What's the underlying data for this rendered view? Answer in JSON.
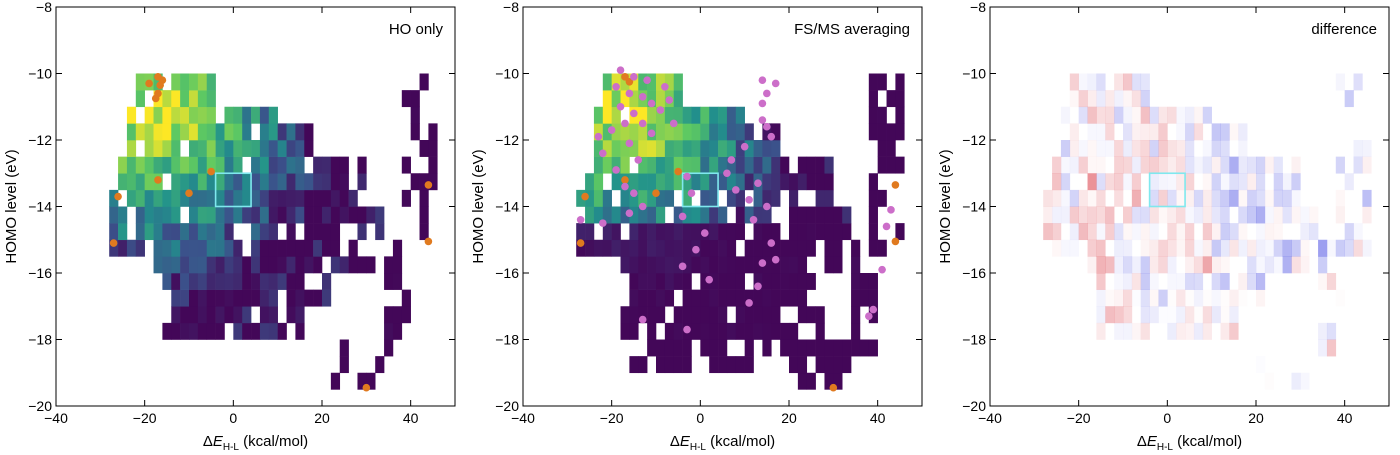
{
  "chart_data": [
    {
      "type": "heatmap",
      "title": "HO only",
      "xlabel": "ΔE",
      "xlabel_subscript": "H-L",
      "xlabel_unit": " (kcal/mol)",
      "ylabel": "HOMO level (eV)",
      "xlim": [
        -40,
        50
      ],
      "ylim": [
        -20,
        -8
      ],
      "xticks": [
        -40,
        -20,
        0,
        20,
        40
      ],
      "yticks": [
        -8,
        -10,
        -12,
        -14,
        -16,
        -18,
        -20
      ],
      "grid": false,
      "colormap": "viridis",
      "highlight_box": {
        "x": [
          -4,
          4
        ],
        "y": [
          -14,
          -13
        ],
        "color": "#7fe8ee"
      },
      "points": [
        {
          "x": -17,
          "y": -10.1,
          "color": "#e07a1f"
        },
        {
          "x": -16,
          "y": -10.2,
          "color": "#e07a1f"
        },
        {
          "x": -16.5,
          "y": -10.35,
          "color": "#e07a1f"
        },
        {
          "x": -19,
          "y": -10.3,
          "color": "#e07a1f"
        },
        {
          "x": -17,
          "y": -10.6,
          "color": "#e07a1f"
        },
        {
          "x": -17.5,
          "y": -10.75,
          "color": "#e07a1f"
        },
        {
          "x": -10,
          "y": -13.6,
          "color": "#e07a1f"
        },
        {
          "x": -17,
          "y": -13.2,
          "color": "#e07a1f"
        },
        {
          "x": -5,
          "y": -12.95,
          "color": "#e07a1f"
        },
        {
          "x": -26,
          "y": -13.7,
          "color": "#e07a1f"
        },
        {
          "x": -27,
          "y": -15.1,
          "color": "#e07a1f"
        },
        {
          "x": 44,
          "y": -13.35,
          "color": "#e07a1f"
        },
        {
          "x": 44,
          "y": -15.05,
          "color": "#e07a1f"
        },
        {
          "x": 30,
          "y": -19.45,
          "color": "#e07a1f"
        }
      ]
    },
    {
      "type": "heatmap",
      "title": "FS/MS averaging",
      "xlabel": "ΔE",
      "xlabel_subscript": "H-L",
      "xlabel_unit": " (kcal/mol)",
      "ylabel": "HOMO level (eV)",
      "xlim": [
        -40,
        50
      ],
      "ylim": [
        -20,
        -8
      ],
      "xticks": [
        -40,
        -20,
        0,
        20,
        40
      ],
      "yticks": [
        -8,
        -10,
        -12,
        -14,
        -16,
        -18,
        -20
      ],
      "grid": false,
      "colormap": "viridis",
      "highlight_box": {
        "x": [
          -4,
          4
        ],
        "y": [
          -14,
          -13
        ],
        "color": "#7fe8ee"
      },
      "points": [
        {
          "x": -17,
          "y": -10.1,
          "color": "#e07a1f"
        },
        {
          "x": -16,
          "y": -10.25,
          "color": "#e07a1f"
        },
        {
          "x": -10,
          "y": -13.6,
          "color": "#e07a1f"
        },
        {
          "x": -17,
          "y": -13.2,
          "color": "#e07a1f"
        },
        {
          "x": -5,
          "y": -12.95,
          "color": "#e07a1f"
        },
        {
          "x": -26,
          "y": -13.7,
          "color": "#e07a1f"
        },
        {
          "x": -27,
          "y": -15.1,
          "color": "#e07a1f"
        },
        {
          "x": 44,
          "y": -13.35,
          "color": "#e07a1f"
        },
        {
          "x": 44,
          "y": -15.05,
          "color": "#e07a1f"
        },
        {
          "x": 30,
          "y": -19.45,
          "color": "#e07a1f"
        },
        {
          "x": -18,
          "y": -9.9,
          "color": "#cc6ec9"
        },
        {
          "x": -15,
          "y": -10.1,
          "color": "#cc6ec9"
        },
        {
          "x": -12,
          "y": -10.2,
          "color": "#cc6ec9"
        },
        {
          "x": -19,
          "y": -10.4,
          "color": "#cc6ec9"
        },
        {
          "x": -16,
          "y": -10.6,
          "color": "#cc6ec9"
        },
        {
          "x": -13,
          "y": -10.7,
          "color": "#cc6ec9"
        },
        {
          "x": -11,
          "y": -10.9,
          "color": "#cc6ec9"
        },
        {
          "x": -18,
          "y": -11.0,
          "color": "#cc6ec9"
        },
        {
          "x": -15,
          "y": -11.2,
          "color": "#cc6ec9"
        },
        {
          "x": -9,
          "y": -11.1,
          "color": "#cc6ec9"
        },
        {
          "x": -17,
          "y": -11.5,
          "color": "#cc6ec9"
        },
        {
          "x": -13,
          "y": -11.5,
          "color": "#cc6ec9"
        },
        {
          "x": -20,
          "y": -11.7,
          "color": "#cc6ec9"
        },
        {
          "x": -11,
          "y": -11.8,
          "color": "#cc6ec9"
        },
        {
          "x": -23,
          "y": -11.9,
          "color": "#cc6ec9"
        },
        {
          "x": -16,
          "y": -12.1,
          "color": "#cc6ec9"
        },
        {
          "x": -22,
          "y": -12.4,
          "color": "#cc6ec9"
        },
        {
          "x": -14,
          "y": -12.6,
          "color": "#cc6ec9"
        },
        {
          "x": -19,
          "y": -12.9,
          "color": "#cc6ec9"
        },
        {
          "x": -17,
          "y": -13.4,
          "color": "#cc6ec9"
        },
        {
          "x": -15,
          "y": -13.6,
          "color": "#cc6ec9"
        },
        {
          "x": -13,
          "y": -14.0,
          "color": "#cc6ec9"
        },
        {
          "x": -16,
          "y": -14.2,
          "color": "#cc6ec9"
        },
        {
          "x": -22,
          "y": -14.5,
          "color": "#cc6ec9"
        },
        {
          "x": -27,
          "y": -14.4,
          "color": "#cc6ec9"
        },
        {
          "x": -8,
          "y": -10.4,
          "color": "#cc6ec9"
        },
        {
          "x": -7,
          "y": -10.8,
          "color": "#cc6ec9"
        },
        {
          "x": -6,
          "y": -11.5,
          "color": "#cc6ec9"
        },
        {
          "x": -3,
          "y": -13.1,
          "color": "#cc6ec9"
        },
        {
          "x": -2,
          "y": -13.6,
          "color": "#cc6ec9"
        },
        {
          "x": -4,
          "y": -14.3,
          "color": "#cc6ec9"
        },
        {
          "x": 1,
          "y": -14.8,
          "color": "#cc6ec9"
        },
        {
          "x": -1,
          "y": -15.3,
          "color": "#cc6ec9"
        },
        {
          "x": -4,
          "y": -15.8,
          "color": "#cc6ec9"
        },
        {
          "x": 2,
          "y": -16.2,
          "color": "#cc6ec9"
        },
        {
          "x": 6,
          "y": -13.0,
          "color": "#cc6ec9"
        },
        {
          "x": 7,
          "y": -12.6,
          "color": "#cc6ec9"
        },
        {
          "x": 8,
          "y": -13.5,
          "color": "#cc6ec9"
        },
        {
          "x": 10,
          "y": -12.2,
          "color": "#cc6ec9"
        },
        {
          "x": 11,
          "y": -13.8,
          "color": "#cc6ec9"
        },
        {
          "x": 13,
          "y": -13.3,
          "color": "#cc6ec9"
        },
        {
          "x": 12,
          "y": -14.4,
          "color": "#cc6ec9"
        },
        {
          "x": 15,
          "y": -14.0,
          "color": "#cc6ec9"
        },
        {
          "x": 14,
          "y": -11.4,
          "color": "#cc6ec9"
        },
        {
          "x": 14,
          "y": -10.2,
          "color": "#cc6ec9"
        },
        {
          "x": 15,
          "y": -10.6,
          "color": "#cc6ec9"
        },
        {
          "x": 14,
          "y": -10.9,
          "color": "#cc6ec9"
        },
        {
          "x": 15,
          "y": -11.6,
          "color": "#cc6ec9"
        },
        {
          "x": 16,
          "y": -11.9,
          "color": "#cc6ec9"
        },
        {
          "x": 17,
          "y": -10.3,
          "color": "#cc6ec9"
        },
        {
          "x": 16,
          "y": -15.1,
          "color": "#cc6ec9"
        },
        {
          "x": 14,
          "y": -15.7,
          "color": "#cc6ec9"
        },
        {
          "x": 13,
          "y": -16.4,
          "color": "#cc6ec9"
        },
        {
          "x": 11,
          "y": -16.9,
          "color": "#cc6ec9"
        },
        {
          "x": 17,
          "y": -15.6,
          "color": "#cc6ec9"
        },
        {
          "x": -3,
          "y": -17.7,
          "color": "#cc6ec9"
        },
        {
          "x": -13,
          "y": -17.4,
          "color": "#cc6ec9"
        },
        {
          "x": 39,
          "y": -17.1,
          "color": "#cc6ec9"
        },
        {
          "x": 38,
          "y": -17.3,
          "color": "#cc6ec9"
        },
        {
          "x": 41,
          "y": -15.9,
          "color": "#cc6ec9"
        },
        {
          "x": 43,
          "y": -14.1,
          "color": "#cc6ec9"
        },
        {
          "x": 42,
          "y": -14.6,
          "color": "#cc6ec9"
        }
      ]
    },
    {
      "type": "heatmap",
      "title": "difference",
      "xlabel": "ΔE",
      "xlabel_subscript": "H-L",
      "xlabel_unit": " (kcal/mol)",
      "ylabel": "HOMO level (eV)",
      "xlim": [
        -40,
        50
      ],
      "ylim": [
        -20,
        -8
      ],
      "xticks": [
        -40,
        -20,
        0,
        20,
        40
      ],
      "yticks": [
        -8,
        -10,
        -12,
        -14,
        -16,
        -18,
        -20
      ],
      "grid": false,
      "colormap": "diverging red-white-blue",
      "highlight_box": {
        "x": [
          -4,
          4
        ],
        "y": [
          -14,
          -13
        ],
        "color": "#7fe8ee"
      },
      "points": []
    }
  ]
}
